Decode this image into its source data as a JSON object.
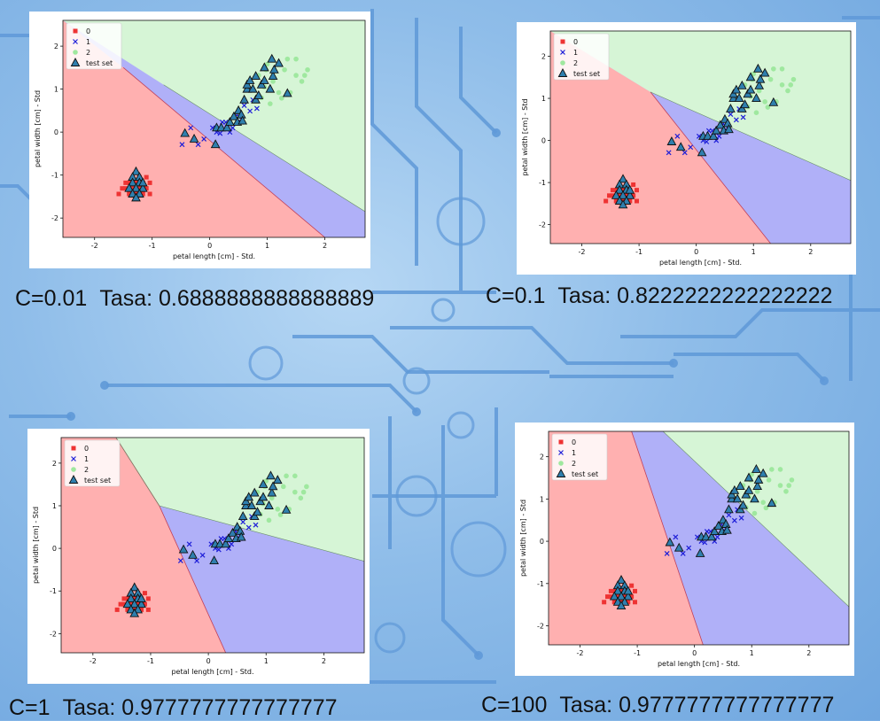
{
  "colors": {
    "class0_region": "#ffb0b0",
    "class1_region": "#b0b0f8",
    "class2_region": "#d6f5d6",
    "class0_marker": "#ee3333",
    "class1_marker": "#1e1ed8",
    "class2_marker": "#9fe89f",
    "test_marker": "#2f7fae"
  },
  "chart_data": [
    {
      "type": "scatter",
      "caption_c": "C=0.01",
      "caption_rate": "Tasa: 0.6888888888888889",
      "xlabel": "petal length [cm] - Std.",
      "ylabel": "petal width [cm] - Std",
      "xlim": [
        -2.55,
        2.7
      ],
      "ylim": [
        -2.45,
        2.6
      ],
      "xticks": [
        -2,
        -1,
        0,
        1,
        2
      ],
      "yticks": [
        -2,
        -1,
        0,
        1,
        2
      ],
      "legend": {
        "position": "top-left",
        "entries": [
          "0",
          "1",
          "2",
          "test set"
        ]
      },
      "boundaries": {
        "b01": [
          [
            -1.5,
            1.5
          ],
          [
            2.0,
            -2.45
          ]
        ],
        "b12": [
          [
            -0.8,
            1.1
          ],
          [
            2.7,
            -1.85
          ]
        ]
      }
    },
    {
      "type": "scatter",
      "caption_c": "C=0.1",
      "caption_rate": "Tasa: 0.8222222222222222",
      "xlabel": "petal length [cm] - Std.",
      "ylabel": "petal width [cm] - Std",
      "xlim": [
        -2.55,
        2.7
      ],
      "ylim": [
        -2.45,
        2.6
      ],
      "xticks": [
        -2,
        -1,
        0,
        1,
        2
      ],
      "yticks": [
        -2,
        -1,
        0,
        1,
        2
      ],
      "legend": {
        "position": "top-left",
        "entries": [
          "0",
          "1",
          "2",
          "test set"
        ]
      },
      "boundaries": {
        "b01": [
          [
            -0.8,
            1.15
          ],
          [
            1.3,
            -2.45
          ]
        ],
        "b12": [
          [
            -0.8,
            1.15
          ],
          [
            2.7,
            -0.95
          ]
        ]
      }
    },
    {
      "type": "scatter",
      "caption_c": "C=1",
      "caption_rate": "Tasa: 0.9777777777777777",
      "xlabel": "petal length [cm] - Std.",
      "ylabel": "petal width [cm] - Std",
      "xlim": [
        -2.55,
        2.7
      ],
      "ylim": [
        -2.45,
        2.6
      ],
      "xticks": [
        -2,
        -1,
        0,
        1,
        2
      ],
      "yticks": [
        -2,
        -1,
        0,
        1,
        2
      ],
      "legend": {
        "position": "top-left",
        "entries": [
          "0",
          "1",
          "2",
          "test set"
        ]
      },
      "boundaries": {
        "b01": [
          [
            -1.6,
            2.6
          ],
          [
            -0.85,
            1.0
          ],
          [
            0.3,
            -2.45
          ]
        ],
        "b12": [
          [
            -1.6,
            2.6
          ],
          [
            -0.85,
            1.0
          ],
          [
            2.7,
            -0.3
          ]
        ]
      }
    },
    {
      "type": "scatter",
      "caption_c": "C=100",
      "caption_rate": "Tasa: 0.9777777777777777",
      "xlabel": "petal length [cm] - Std.",
      "ylabel": "petal width [cm] - Std",
      "xlim": [
        -2.55,
        2.7
      ],
      "ylim": [
        -2.45,
        2.6
      ],
      "xticks": [
        -2,
        -1,
        0,
        1,
        2
      ],
      "yticks": [
        -2,
        -1,
        0,
        1,
        2
      ],
      "legend": {
        "position": "top-left",
        "entries": [
          "0",
          "1",
          "2",
          "test set"
        ]
      },
      "boundaries": {
        "b01": [
          [
            -1.1,
            2.6
          ],
          [
            0.15,
            -2.45
          ]
        ],
        "b12": [
          [
            -0.55,
            2.6
          ],
          [
            2.7,
            -1.55
          ]
        ]
      }
    }
  ],
  "points": {
    "class0": [
      [
        -1.34,
        -1.31
      ],
      [
        -1.28,
        -1.18
      ],
      [
        -1.22,
        -1.31
      ],
      [
        -1.4,
        -1.44
      ],
      [
        -1.16,
        -1.44
      ],
      [
        -1.1,
        -1.31
      ],
      [
        -1.46,
        -1.31
      ],
      [
        -1.22,
        -1.05
      ],
      [
        -1.34,
        -1.18
      ],
      [
        -1.52,
        -1.31
      ],
      [
        -1.16,
        -1.18
      ],
      [
        -1.28,
        -1.44
      ],
      [
        -1.04,
        -1.18
      ],
      [
        -1.04,
        -1.44
      ],
      [
        -1.4,
        -1.18
      ],
      [
        -1.58,
        -1.44
      ],
      [
        -1.1,
        -1.05
      ],
      [
        -1.46,
        -1.18
      ]
    ],
    "class1": [
      [
        -0.48,
        -0.29
      ],
      [
        -0.2,
        -0.29
      ],
      [
        -0.1,
        -0.16
      ],
      [
        0.05,
        0.1
      ],
      [
        0.12,
        0.0
      ],
      [
        0.22,
        0.23
      ],
      [
        0.3,
        0.1
      ],
      [
        0.45,
        0.36
      ],
      [
        0.55,
        0.23
      ],
      [
        0.7,
        0.49
      ],
      [
        0.4,
        0.1
      ],
      [
        0.18,
        -0.03
      ],
      [
        0.28,
        0.23
      ],
      [
        -0.33,
        0.1
      ],
      [
        0.5,
        0.36
      ],
      [
        0.35,
        0.0
      ],
      [
        0.6,
        0.62
      ],
      [
        0.75,
        0.75
      ],
      [
        0.82,
        0.55
      ]
    ],
    "class2": [
      [
        0.95,
        1.05
      ],
      [
        1.1,
        1.18
      ],
      [
        1.2,
        0.92
      ],
      [
        1.3,
        1.45
      ],
      [
        1.4,
        0.92
      ],
      [
        1.5,
        1.32
      ],
      [
        1.6,
        1.18
      ],
      [
        1.7,
        1.45
      ],
      [
        1.2,
        1.58
      ],
      [
        1.0,
        1.58
      ],
      [
        1.35,
        1.7
      ],
      [
        1.5,
        1.7
      ],
      [
        0.9,
        0.8
      ],
      [
        1.05,
        0.66
      ],
      [
        1.25,
        0.79
      ],
      [
        0.85,
        1.32
      ],
      [
        0.98,
        1.45
      ],
      [
        1.65,
        1.32
      ]
    ],
    "test": [
      [
        -1.28,
        -0.92
      ],
      [
        -1.34,
        -1.05
      ],
      [
        -1.22,
        -1.05
      ],
      [
        -1.34,
        -1.18
      ],
      [
        -1.22,
        -1.18
      ],
      [
        -1.16,
        -1.31
      ],
      [
        -1.28,
        -1.31
      ],
      [
        -1.4,
        -1.31
      ],
      [
        -1.34,
        -1.44
      ],
      [
        -1.22,
        -1.44
      ],
      [
        -1.28,
        -1.53
      ],
      [
        -1.16,
        -1.18
      ],
      [
        -0.43,
        -0.03
      ],
      [
        -0.27,
        -0.16
      ],
      [
        0.1,
        -0.29
      ],
      [
        0.12,
        0.1
      ],
      [
        0.2,
        0.1
      ],
      [
        0.3,
        0.1
      ],
      [
        0.35,
        0.23
      ],
      [
        0.42,
        0.36
      ],
      [
        0.48,
        0.23
      ],
      [
        0.5,
        0.5
      ],
      [
        0.55,
        0.4
      ],
      [
        0.57,
        0.26
      ],
      [
        0.6,
        0.75
      ],
      [
        0.65,
        1.0
      ],
      [
        0.75,
        1.0
      ],
      [
        0.8,
        0.75
      ],
      [
        0.65,
        1.1
      ],
      [
        0.7,
        1.2
      ],
      [
        0.8,
        1.3
      ],
      [
        0.9,
        1.1
      ],
      [
        0.95,
        1.2
      ],
      [
        1.05,
        1.0
      ],
      [
        1.1,
        1.3
      ],
      [
        1.12,
        1.45
      ],
      [
        0.95,
        1.5
      ],
      [
        1.08,
        1.7
      ],
      [
        1.2,
        1.6
      ],
      [
        0.85,
        0.85
      ],
      [
        1.35,
        0.9
      ]
    ]
  }
}
